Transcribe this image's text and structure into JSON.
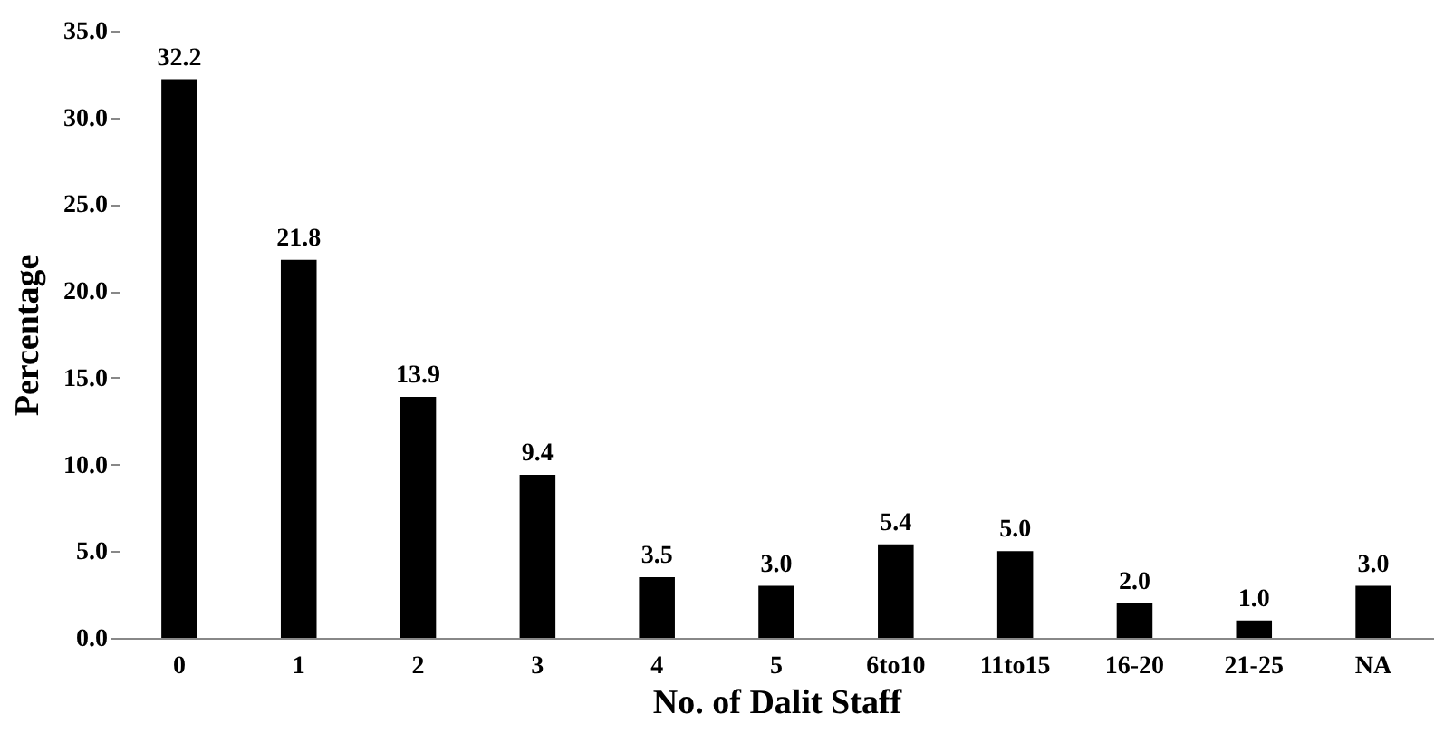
{
  "chart_data": {
    "type": "bar",
    "xlabel": "No. of Dalit Staff",
    "ylabel": "Percentage",
    "categories": [
      "0",
      "1",
      "2",
      "3",
      "4",
      "5",
      "6to10",
      "11to15",
      "16-20",
      "21-25",
      "NA"
    ],
    "values": [
      32.2,
      21.8,
      13.9,
      9.4,
      3.5,
      3.0,
      5.4,
      5.0,
      2.0,
      1.0,
      3.0
    ],
    "value_labels": [
      "32.2",
      "21.8",
      "13.9",
      "9.4",
      "3.5",
      "3.0",
      "5.4",
      "5.0",
      "2.0",
      "1.0",
      "3.0"
    ],
    "color": "#000000",
    "ylim": [
      0,
      35
    ],
    "yticks": [
      {
        "value": 0,
        "label": "0.0"
      },
      {
        "value": 5,
        "label": "5.0"
      },
      {
        "value": 10,
        "label": "10.0"
      },
      {
        "value": 15,
        "label": "15.0"
      },
      {
        "value": 20,
        "label": "20.0"
      },
      {
        "value": 25,
        "label": "25.0"
      },
      {
        "value": 30,
        "label": "30.0"
      },
      {
        "value": 35,
        "label": "35.0"
      }
    ],
    "grid": false
  }
}
